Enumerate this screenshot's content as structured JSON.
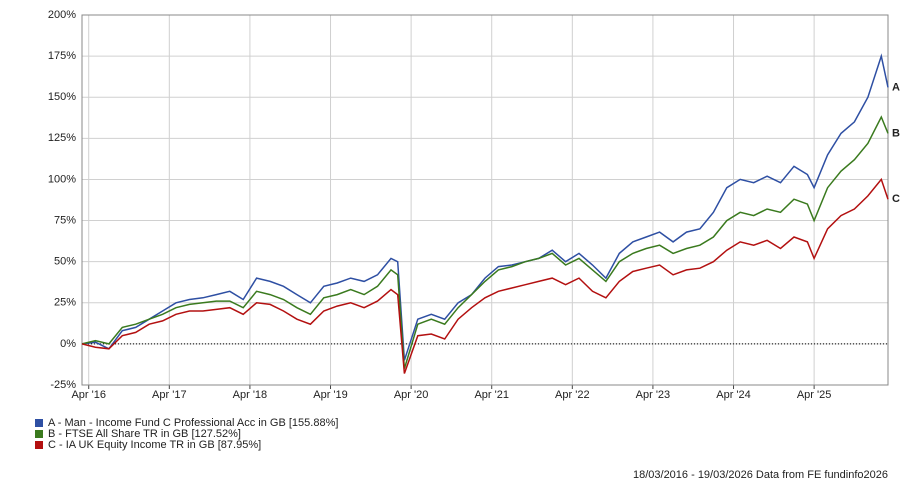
{
  "chart_data": {
    "type": "line",
    "x": [
      "2016-03",
      "2016-05",
      "2016-07",
      "2016-09",
      "2016-11",
      "2017-01",
      "2017-03",
      "2017-05",
      "2017-07",
      "2017-09",
      "2017-11",
      "2018-01",
      "2018-03",
      "2018-05",
      "2018-07",
      "2018-09",
      "2018-11",
      "2019-01",
      "2019-03",
      "2019-05",
      "2019-07",
      "2019-09",
      "2019-11",
      "2020-01",
      "2020-02",
      "2020-03",
      "2020-05",
      "2020-07",
      "2020-09",
      "2020-11",
      "2021-01",
      "2021-03",
      "2021-05",
      "2021-07",
      "2021-09",
      "2021-11",
      "2022-01",
      "2022-03",
      "2022-05",
      "2022-07",
      "2022-09",
      "2022-11",
      "2023-01",
      "2023-03",
      "2023-05",
      "2023-07",
      "2023-09",
      "2023-11",
      "2024-01",
      "2024-03",
      "2024-05",
      "2024-07",
      "2024-09",
      "2024-11",
      "2025-01",
      "2025-03",
      "2025-04",
      "2025-06",
      "2025-08",
      "2025-10",
      "2025-12",
      "2026-02",
      "2026-03"
    ],
    "series": [
      {
        "name": "A - Man - Income Fund C Professional Acc in GB [155.88%]",
        "label": "A",
        "color": "#2e4fa3",
        "values": [
          0,
          1,
          -3,
          8,
          10,
          15,
          20,
          25,
          27,
          28,
          30,
          32,
          27,
          40,
          38,
          35,
          30,
          25,
          35,
          37,
          40,
          38,
          42,
          52,
          50,
          -10,
          15,
          18,
          15,
          25,
          30,
          40,
          47,
          48,
          50,
          52,
          57,
          50,
          55,
          48,
          40,
          55,
          62,
          65,
          68,
          62,
          68,
          70,
          80,
          95,
          100,
          98,
          102,
          98,
          108,
          103,
          95,
          115,
          128,
          135,
          150,
          175,
          156
        ]
      },
      {
        "name": "B - FTSE All Share TR in GB [127.52%]",
        "label": "B",
        "color": "#3a7a1e",
        "values": [
          0,
          2,
          0,
          10,
          12,
          15,
          18,
          22,
          24,
          25,
          26,
          26,
          22,
          32,
          30,
          27,
          22,
          18,
          28,
          30,
          33,
          30,
          35,
          45,
          42,
          -15,
          12,
          15,
          12,
          22,
          30,
          38,
          45,
          47,
          50,
          52,
          55,
          48,
          52,
          45,
          38,
          50,
          55,
          58,
          60,
          55,
          58,
          60,
          65,
          75,
          80,
          78,
          82,
          80,
          88,
          85,
          75,
          95,
          105,
          112,
          122,
          138,
          128
        ]
      },
      {
        "name": "C - IA UK Equity Income TR in GB [87.95%]",
        "label": "C",
        "color": "#b31010",
        "values": [
          0,
          -2,
          -3,
          5,
          7,
          12,
          14,
          18,
          20,
          20,
          21,
          22,
          18,
          25,
          24,
          20,
          15,
          12,
          20,
          23,
          25,
          22,
          26,
          33,
          30,
          -18,
          5,
          6,
          3,
          15,
          22,
          28,
          32,
          34,
          36,
          38,
          40,
          36,
          40,
          32,
          28,
          38,
          44,
          46,
          48,
          42,
          45,
          46,
          50,
          57,
          62,
          60,
          63,
          58,
          65,
          62,
          52,
          70,
          78,
          82,
          90,
          100,
          88
        ]
      }
    ],
    "xlim": [
      "2016-03",
      "2026-03"
    ],
    "xticks": [
      {
        "value": "2016-04",
        "label": "Apr '16"
      },
      {
        "value": "2017-04",
        "label": "Apr '17"
      },
      {
        "value": "2018-04",
        "label": "Apr '18"
      },
      {
        "value": "2019-04",
        "label": "Apr '19"
      },
      {
        "value": "2020-04",
        "label": "Apr '20"
      },
      {
        "value": "2021-04",
        "label": "Apr '21"
      },
      {
        "value": "2022-04",
        "label": "Apr '22"
      },
      {
        "value": "2023-04",
        "label": "Apr '23"
      },
      {
        "value": "2024-04",
        "label": "Apr '24"
      },
      {
        "value": "2025-04",
        "label": "Apr '25"
      }
    ],
    "ylim": [
      -25,
      200
    ],
    "yticks": [
      {
        "value": -25,
        "label": "-25%"
      },
      {
        "value": 0,
        "label": "0%"
      },
      {
        "value": 25,
        "label": "25%"
      },
      {
        "value": 50,
        "label": "50%"
      },
      {
        "value": 75,
        "label": "75%"
      },
      {
        "value": 100,
        "label": "100%"
      },
      {
        "value": 125,
        "label": "125%"
      },
      {
        "value": 150,
        "label": "150%"
      },
      {
        "value": 175,
        "label": "175%"
      },
      {
        "value": 200,
        "label": "200%"
      }
    ],
    "grid": true,
    "footer": "18/03/2016 - 19/03/2026 Data from FE fundinfo2026"
  }
}
